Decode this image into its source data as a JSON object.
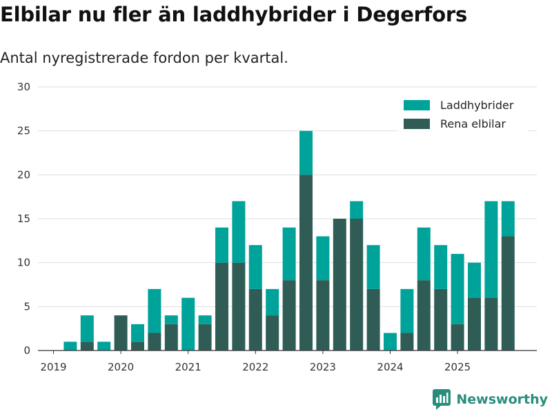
{
  "header": {
    "title": "Elbilar nu fler än laddhybrider i Degerfors",
    "subtitle": "Antal nyregistrerade fordon per kvartal."
  },
  "brand": {
    "name": "Newsworthy"
  },
  "colors": {
    "laddhybrider": "#00a39a",
    "rena_elbilar": "#2f5d56",
    "grid": "#dddddd",
    "axis": "#333333",
    "brand": "#2a8c7c"
  },
  "chart_data": {
    "type": "bar",
    "stacked": true,
    "title": "Elbilar nu fler än laddhybrider i Degerfors",
    "subtitle": "Antal nyregistrerade fordon per kvartal.",
    "xlabel": "",
    "ylabel": "",
    "ylim": [
      0,
      30
    ],
    "yticks": [
      0,
      5,
      10,
      15,
      20,
      25,
      30
    ],
    "grid": true,
    "legend_position": "top-right",
    "x_year_labels": [
      "2019",
      "2020",
      "2021",
      "2022",
      "2023",
      "2024",
      "2025"
    ],
    "categories": [
      "2019 Q1",
      "2019 Q2",
      "2019 Q3",
      "2019 Q4",
      "2020 Q1",
      "2020 Q2",
      "2020 Q3",
      "2020 Q4",
      "2021 Q1",
      "2021 Q2",
      "2021 Q3",
      "2021 Q4",
      "2022 Q1",
      "2022 Q2",
      "2022 Q3",
      "2022 Q4",
      "2023 Q1",
      "2023 Q2",
      "2023 Q3",
      "2023 Q4",
      "2024 Q1",
      "2024 Q2",
      "2024 Q3",
      "2024 Q4",
      "2025 Q1",
      "2025 Q2",
      "2025 Q3",
      "2025 Q4"
    ],
    "series": [
      {
        "name": "Rena elbilar",
        "key": "rena_elbilar",
        "values": [
          0,
          0,
          1,
          0,
          4,
          1,
          2,
          3,
          0,
          3,
          10,
          10,
          7,
          4,
          8,
          20,
          8,
          15,
          15,
          7,
          0,
          2,
          8,
          7,
          3,
          6,
          6,
          13
        ]
      },
      {
        "name": "Laddhybrider",
        "key": "laddhybrider",
        "values": [
          0,
          1,
          3,
          1,
          0,
          2,
          5,
          1,
          6,
          1,
          4,
          7,
          5,
          3,
          6,
          5,
          5,
          0,
          2,
          5,
          2,
          5,
          6,
          5,
          8,
          4,
          11,
          4
        ]
      }
    ]
  }
}
